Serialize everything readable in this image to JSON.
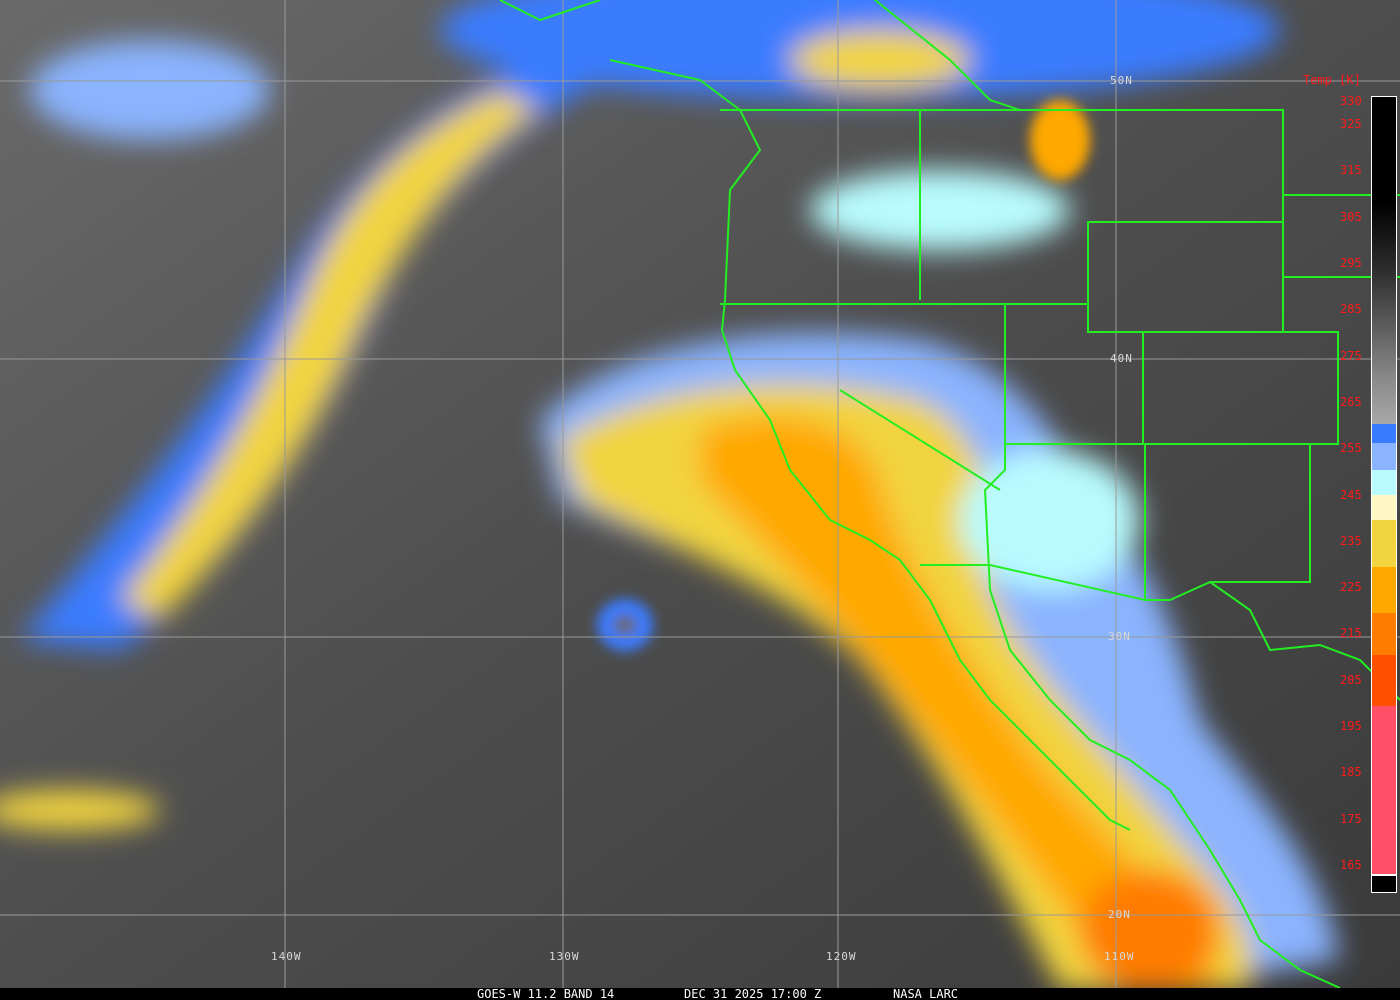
{
  "footer": {
    "product": "GOES-W 11.2 BAND 14",
    "datetime": "DEC 31 2025 17:00 Z",
    "credit": "NASA LARC"
  },
  "latitude_labels": [
    "50N",
    "40N",
    "30N",
    "20N"
  ],
  "longitude_labels": [
    "140W",
    "130W",
    "120W",
    "110W"
  ],
  "legend": {
    "title": "Temp [K]",
    "ticks": [
      "330",
      "325",
      "315",
      "305",
      "295",
      "285",
      "275",
      "265",
      "255",
      "245",
      "235",
      "225",
      "215",
      "205",
      "195",
      "185",
      "175",
      "165"
    ],
    "colors": {
      "cold_pink": "#ff5068",
      "red_orange": "#ff5000",
      "dark_orange": "#ff7c00",
      "orange": "#ffa800",
      "yellow": "#f2d440",
      "pale_yellow": "#fff8c4",
      "pale_cyan": "#b8fcff",
      "light_blue": "#8ab4ff",
      "blue": "#3a7cff",
      "border_green": "#22ee22"
    }
  }
}
